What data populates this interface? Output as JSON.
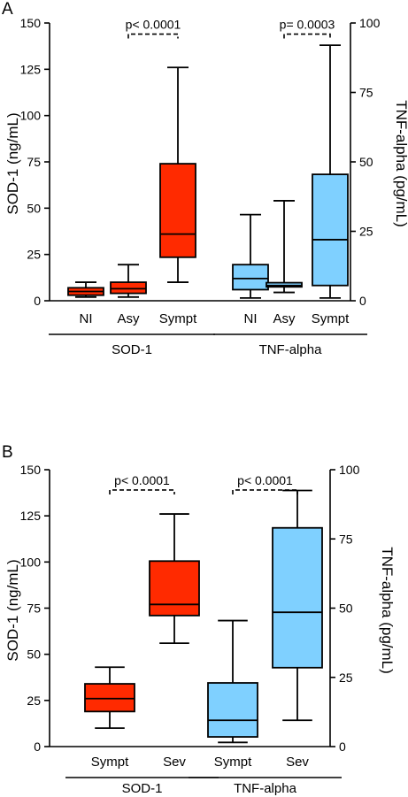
{
  "colors": {
    "sod1": "#ff2a00",
    "tnf": "#7fd0ff",
    "axis": "#000000"
  },
  "chart_data": [
    {
      "type": "box",
      "panel_label": "A",
      "ylabel_left": "SOD-1 (ng/mL)",
      "ylabel_right": "TNF-alpha (pg/mL)",
      "ylim_left": [
        0,
        150
      ],
      "yticks_left": [
        0,
        25,
        50,
        75,
        100,
        125,
        150
      ],
      "ylim_right": [
        0,
        100
      ],
      "yticks_right": [
        0,
        25,
        50,
        75,
        100
      ],
      "groups": [
        {
          "label": "SOD-1",
          "axis": "left",
          "color": "#ff2a00",
          "categories": [
            "NI",
            "Asy",
            "Sympt"
          ]
        },
        {
          "label": "TNF-alpha",
          "axis": "right",
          "color": "#7fd0ff",
          "categories": [
            "NI",
            "Asy",
            "Sympt"
          ]
        }
      ],
      "boxes": [
        {
          "group": 0,
          "category": "NI",
          "min": 2,
          "q1": 3,
          "median": 5,
          "q3": 7,
          "max": 10
        },
        {
          "group": 0,
          "category": "Asy",
          "min": 2,
          "q1": 4,
          "median": 6.5,
          "q3": 10,
          "max": 19.5
        },
        {
          "group": 0,
          "category": "Sympt",
          "min": 10,
          "q1": 23.5,
          "median": 36,
          "q3": 74,
          "max": 126
        },
        {
          "group": 1,
          "category": "NI",
          "min": 1,
          "q1": 4,
          "median": 8,
          "q3": 13,
          "max": 31
        },
        {
          "group": 1,
          "category": "Asy",
          "min": 3,
          "q1": 5,
          "median": 5.5,
          "q3": 6.5,
          "max": 36
        },
        {
          "group": 1,
          "category": "Sympt",
          "min": 1,
          "q1": 5.5,
          "median": 22,
          "q3": 45.5,
          "max": 92
        }
      ],
      "comparisons": [
        {
          "label": "p< 0.0001",
          "from_box": 1,
          "to_box": 2,
          "level_left": 144
        },
        {
          "label": "p= 0.0003",
          "from_box": 4,
          "to_box": 5,
          "level_left": 144
        }
      ]
    },
    {
      "type": "box",
      "panel_label": "B",
      "ylabel_left": "SOD-1 (ng/mL)",
      "ylabel_right": "TNF-alpha (pg/mL)",
      "ylim_left": [
        0,
        150
      ],
      "yticks_left": [
        0,
        25,
        50,
        75,
        100,
        125,
        150
      ],
      "ylim_right": [
        0,
        100
      ],
      "yticks_right": [
        0,
        25,
        50,
        75,
        100
      ],
      "groups": [
        {
          "label": "SOD-1",
          "axis": "left",
          "color": "#ff2a00",
          "categories": [
            "Sympt",
            "Sev"
          ]
        },
        {
          "label": "TNF-alpha",
          "axis": "right",
          "color": "#7fd0ff",
          "categories": [
            "Sympt",
            "Sev"
          ]
        }
      ],
      "boxes": [
        {
          "group": 0,
          "category": "Sympt",
          "min": 10,
          "q1": 19,
          "median": 26,
          "q3": 34,
          "max": 43
        },
        {
          "group": 0,
          "category": "Sev",
          "min": 56,
          "q1": 71,
          "median": 77,
          "q3": 100.5,
          "max": 126
        },
        {
          "group": 1,
          "category": "Sympt",
          "min": 1.5,
          "q1": 3.5,
          "median": 9.5,
          "q3": 23,
          "max": 45.5
        },
        {
          "group": 1,
          "category": "Sev",
          "min": 9.5,
          "q1": 28.5,
          "median": 48.5,
          "q3": 79,
          "max": 92.5
        }
      ],
      "comparisons": [
        {
          "label": "p< 0.0001",
          "from_box": 0,
          "to_box": 1,
          "level_left": 139
        },
        {
          "label": "p< 0.0001",
          "from_box": 2,
          "to_box": 3,
          "level_left": 139
        }
      ]
    }
  ]
}
